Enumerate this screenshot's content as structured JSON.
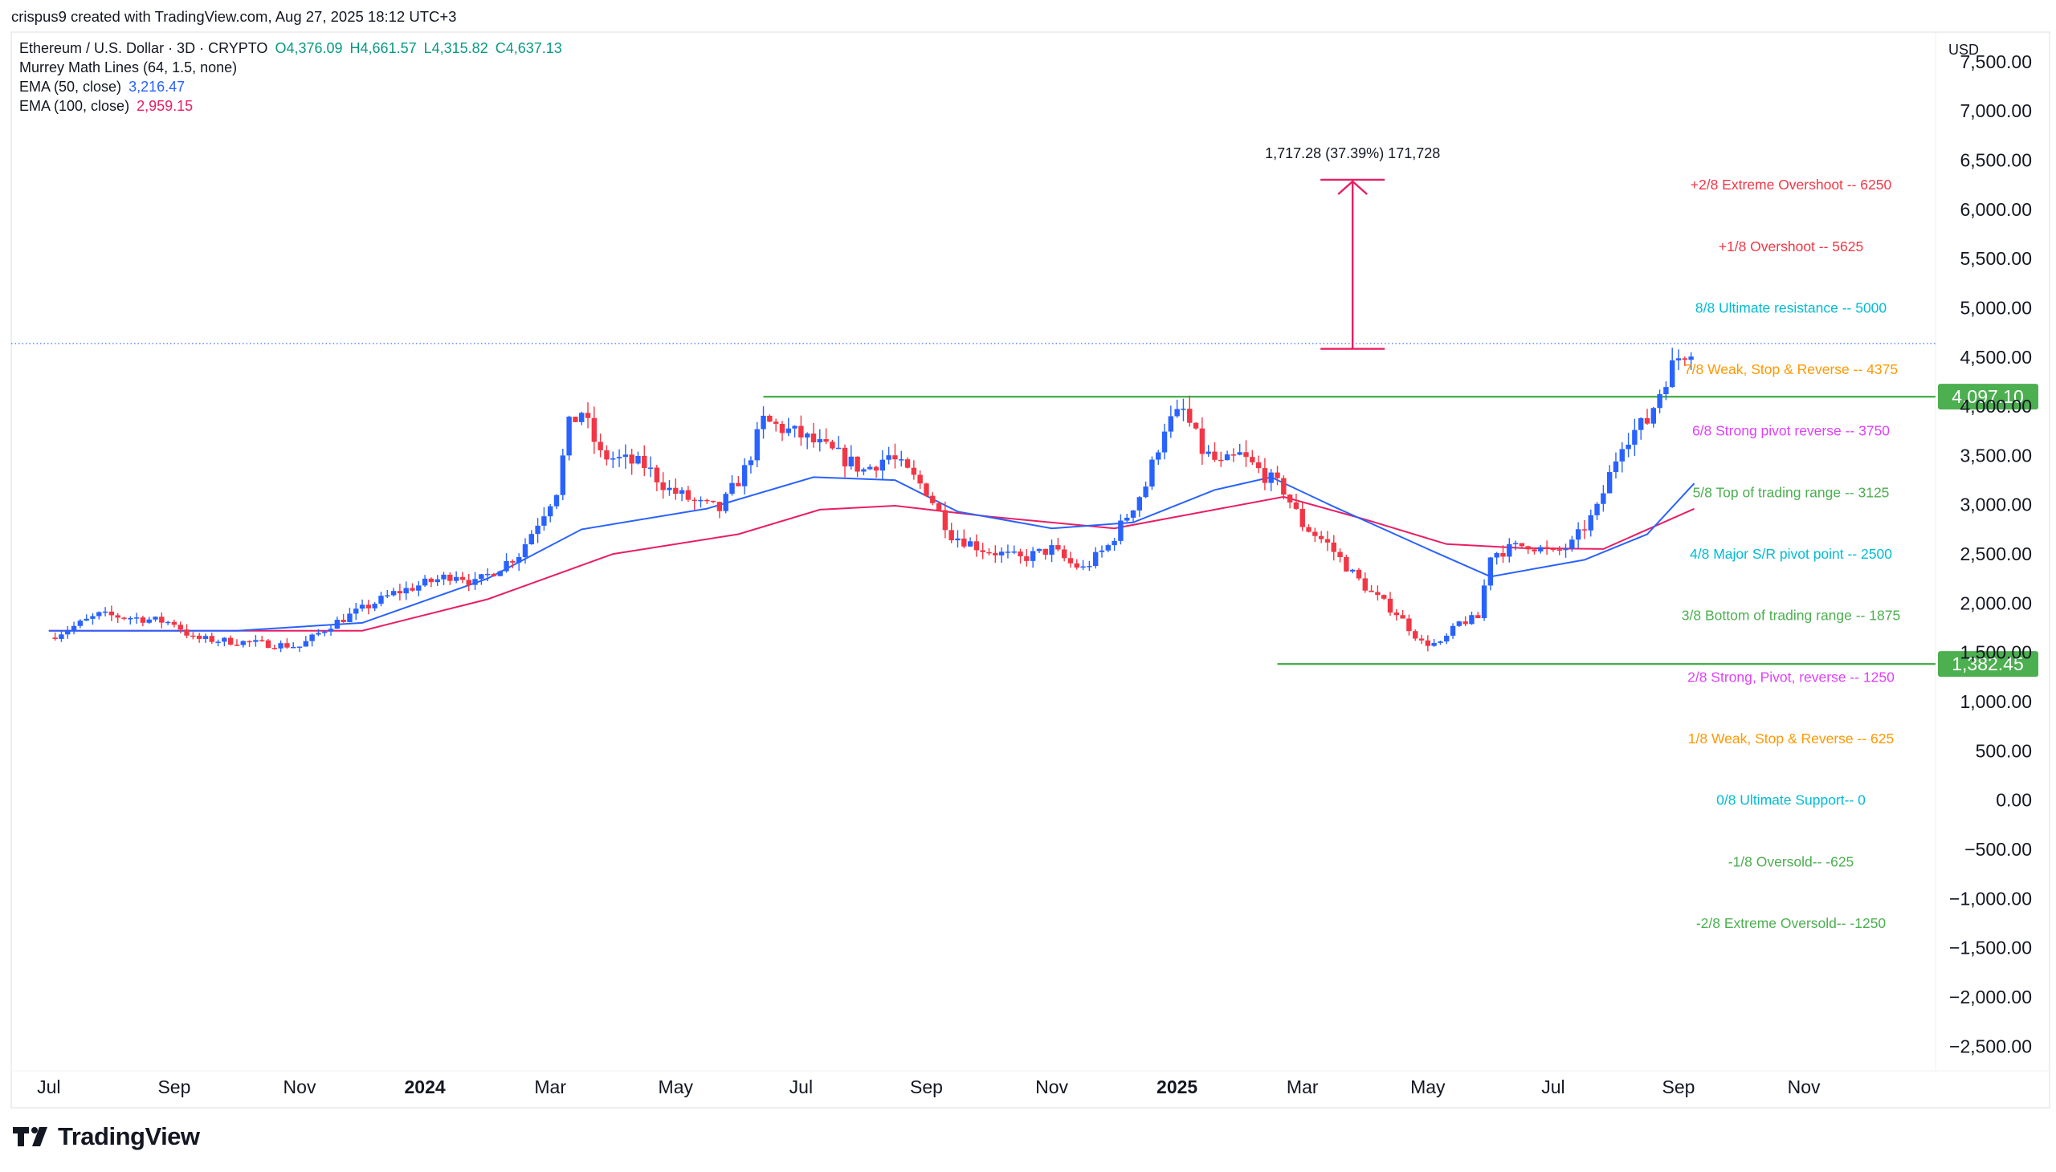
{
  "header": {
    "credit": "crispus9 created with TradingView.com, Aug 27, 2025 18:12 UTC+3",
    "symbol": "Ethereum / U.S. Dollar · 3D · CRYPTO",
    "ohlc": {
      "o": "O4,376.09",
      "h": "H4,661.57",
      "l": "L4,315.82",
      "c": "C4,637.13"
    },
    "indicators": [
      {
        "label": "Murrey Math Lines (64, 1.5, none)",
        "value": "",
        "color": "#131722"
      },
      {
        "label": "EMA (50, close)",
        "value": "3,216.47",
        "color": "#2962ff"
      },
      {
        "label": "EMA (100, close)",
        "value": "2,959.15",
        "color": "#e91e63"
      }
    ],
    "currency": "USD"
  },
  "footer": {
    "logo_text": "TradingView",
    "logo_mark": "TV"
  },
  "colors": {
    "up": "#2962ff",
    "down": "#f23645",
    "ohlc_value": "#089981",
    "hline": "#4caf50",
    "ema50": "#2962ff",
    "ema100": "#e91e63",
    "measure": "#e91e63"
  },
  "chart_data": {
    "type": "candlestick",
    "title": "Ethereum / U.S. Dollar · 3D · CRYPTO",
    "x_labels": [
      {
        "label": "Jul",
        "bold": false
      },
      {
        "label": "Sep",
        "bold": false
      },
      {
        "label": "Nov",
        "bold": false
      },
      {
        "label": "2024",
        "bold": true
      },
      {
        "label": "Mar",
        "bold": false
      },
      {
        "label": "May",
        "bold": false
      },
      {
        "label": "Jul",
        "bold": false
      },
      {
        "label": "Sep",
        "bold": false
      },
      {
        "label": "Nov",
        "bold": false
      },
      {
        "label": "2025",
        "bold": true
      },
      {
        "label": "Mar",
        "bold": false
      },
      {
        "label": "May",
        "bold": false
      },
      {
        "label": "Jul",
        "bold": false
      },
      {
        "label": "Sep",
        "bold": false
      },
      {
        "label": "Nov",
        "bold": false
      }
    ],
    "x_months": [
      0,
      2,
      4,
      6,
      8,
      10,
      12,
      14,
      16,
      18,
      20,
      22,
      24,
      26,
      28
    ],
    "x_range_months": [
      -0.6,
      30.1
    ],
    "y_range": [
      -2750,
      7800
    ],
    "y_ticks": [
      7500,
      7000,
      6500,
      6000,
      5500,
      5000,
      4500,
      4000,
      3500,
      3000,
      2500,
      2000,
      1500,
      1000,
      500,
      0,
      -500,
      -1000,
      -1500,
      -2000,
      -2500
    ],
    "y_tick_labels": [
      "7,500.00",
      "7,000.00",
      "6,500.00",
      "6,000.00",
      "5,500.00",
      "5,000.00",
      "4,500.00",
      "4,000.00",
      "3,500.00",
      "3,000.00",
      "2,500.00",
      "2,000.00",
      "1,500.00",
      "1,000.00",
      "500.00",
      "0.00",
      "−500.00",
      "−1,000.00",
      "−1,500.00",
      "−2,000.00",
      "−2,500.00"
    ],
    "price_path": [
      [
        0.0,
        1650
      ],
      [
        0.8,
        1880
      ],
      [
        1.4,
        1850
      ],
      [
        2.0,
        1800
      ],
      [
        2.3,
        1640
      ],
      [
        3.2,
        1600
      ],
      [
        4.0,
        1560
      ],
      [
        4.5,
        1780
      ],
      [
        5.5,
        2100
      ],
      [
        6.5,
        2300
      ],
      [
        6.8,
        2200
      ],
      [
        7.5,
        2500
      ],
      [
        8.1,
        3150
      ],
      [
        8.3,
        3800
      ],
      [
        8.5,
        3950
      ],
      [
        8.8,
        3500
      ],
      [
        9.5,
        3400
      ],
      [
        9.9,
        3150
      ],
      [
        10.4,
        3000
      ],
      [
        10.7,
        2950
      ],
      [
        11.1,
        3350
      ],
      [
        11.4,
        3850
      ],
      [
        12.0,
        3700
      ],
      [
        12.6,
        3500
      ],
      [
        13.0,
        3350
      ],
      [
        13.4,
        3500
      ],
      [
        14.0,
        3150
      ],
      [
        14.4,
        2700
      ],
      [
        14.9,
        2550
      ],
      [
        15.5,
        2450
      ],
      [
        16.0,
        2550
      ],
      [
        16.3,
        2400
      ],
      [
        16.5,
        2350
      ],
      [
        16.9,
        2580
      ],
      [
        17.5,
        3200
      ],
      [
        17.8,
        3800
      ],
      [
        18.1,
        3950
      ],
      [
        18.4,
        3550
      ],
      [
        18.7,
        3400
      ],
      [
        19.0,
        3500
      ],
      [
        19.4,
        3300
      ],
      [
        19.7,
        3150
      ],
      [
        20.0,
        2800
      ],
      [
        20.4,
        2600
      ],
      [
        20.8,
        2300
      ],
      [
        21.1,
        2100
      ],
      [
        21.5,
        1900
      ],
      [
        21.9,
        1600
      ],
      [
        22.2,
        1580
      ],
      [
        22.5,
        1800
      ],
      [
        22.8,
        1850
      ],
      [
        23.0,
        2500
      ],
      [
        23.6,
        2600
      ],
      [
        24.0,
        2500
      ],
      [
        24.3,
        2600
      ],
      [
        24.7,
        2950
      ],
      [
        25.1,
        3650
      ],
      [
        25.5,
        3850
      ],
      [
        25.8,
        4300
      ],
      [
        26.0,
        4500
      ],
      [
        26.25,
        4637
      ]
    ],
    "ema50": [
      [
        0.0,
        1720
      ],
      [
        3.0,
        1720
      ],
      [
        5.0,
        1800
      ],
      [
        7.0,
        2250
      ],
      [
        8.5,
        2750
      ],
      [
        10.5,
        2960
      ],
      [
        12.2,
        3280
      ],
      [
        13.5,
        3250
      ],
      [
        14.5,
        2930
      ],
      [
        16.0,
        2760
      ],
      [
        17.3,
        2820
      ],
      [
        18.6,
        3150
      ],
      [
        19.5,
        3280
      ],
      [
        20.5,
        2980
      ],
      [
        22.0,
        2550
      ],
      [
        23.0,
        2270
      ],
      [
        24.5,
        2440
      ],
      [
        25.5,
        2700
      ],
      [
        26.25,
        3216
      ]
    ],
    "ema100": [
      [
        0.0,
        1720
      ],
      [
        5.0,
        1720
      ],
      [
        7.0,
        2040
      ],
      [
        9.0,
        2500
      ],
      [
        11.0,
        2700
      ],
      [
        12.3,
        2950
      ],
      [
        13.5,
        2990
      ],
      [
        15.0,
        2880
      ],
      [
        17.0,
        2760
      ],
      [
        18.6,
        2950
      ],
      [
        19.7,
        3080
      ],
      [
        21.0,
        2850
      ],
      [
        22.3,
        2600
      ],
      [
        23.5,
        2560
      ],
      [
        24.8,
        2550
      ],
      [
        26.25,
        2959
      ]
    ],
    "horizontal_levels": [
      {
        "value": 4097.1,
        "label": "4,097.10",
        "x_start_month": 11.4
      },
      {
        "value": 1382.45,
        "label": "1,382.45",
        "x_start_month": 19.6
      }
    ],
    "current_price_line": 4637,
    "measurement": {
      "from": 4583,
      "to": 6300,
      "x_month": 20.8,
      "label": "1,717.28 (37.39%) 171,728"
    },
    "murrey_lines": [
      {
        "value": 6250,
        "label": "+2/8 Extreme Overshoot --  6250",
        "color": "#f23645"
      },
      {
        "value": 5625,
        "label": "+1/8 Overshoot --  5625",
        "color": "#f23645"
      },
      {
        "value": 5000,
        "label": "8/8 Ultimate resistance --  5000",
        "color": "#00bcd4"
      },
      {
        "value": 4375,
        "label": "7/8 Weak, Stop & Reverse --  4375",
        "color": "#ff9800"
      },
      {
        "value": 3750,
        "label": "6/8 Strong pivot reverse --  3750",
        "color": "#e040fb"
      },
      {
        "value": 3125,
        "label": "5/8 Top of trading range --  3125",
        "color": "#4caf50"
      },
      {
        "value": 2500,
        "label": "4/8 Major S/R pivot point --  2500",
        "color": "#00bcd4"
      },
      {
        "value": 1875,
        "label": "3/8 Bottom of trading range --  1875",
        "color": "#4caf50"
      },
      {
        "value": 1250,
        "label": "2/8 Strong, Pivot, reverse --  1250",
        "color": "#e040fb"
      },
      {
        "value": 625,
        "label": "1/8 Weak, Stop & Reverse --  625",
        "color": "#ff9800"
      },
      {
        "value": 0,
        "label": "0/8 Ultimate Support--  0",
        "color": "#00bcd4"
      },
      {
        "value": -625,
        "label": "-1/8 Oversold--  -625",
        "color": "#4caf50"
      },
      {
        "value": -1250,
        "label": "-2/8 Extreme Oversold--  -1250",
        "color": "#4caf50"
      }
    ]
  }
}
